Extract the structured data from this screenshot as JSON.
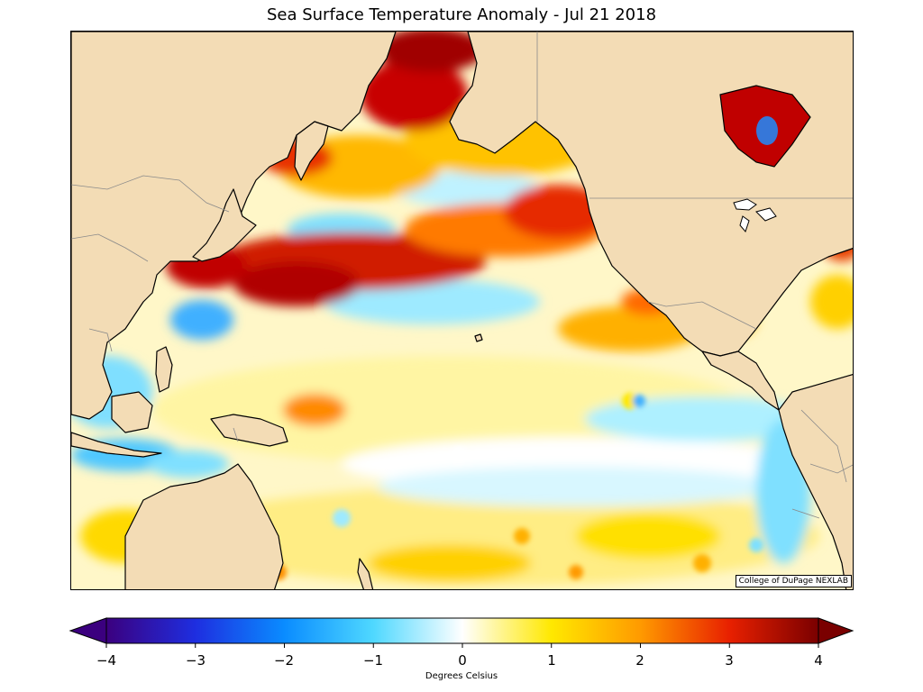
{
  "title": "Sea Surface Temperature Anomaly - Jul 21 2018",
  "credit": "College of DuPage NEXLAB",
  "colorbar": {
    "label": "Degrees Celsius",
    "ticks": [
      "−4",
      "−3",
      "−2",
      "−1",
      "0",
      "1",
      "2",
      "3",
      "4"
    ],
    "stops": [
      "#3b007f",
      "#1e2ee0",
      "#0a8cff",
      "#4fd8ff",
      "#ffffff",
      "#ffe800",
      "#ff9a00",
      "#e82000",
      "#7a0000"
    ]
  },
  "colors": {
    "land": "#f3dcb5",
    "coast": "#000000",
    "border": "#8a8a8a",
    "warm_strong": "#b00000",
    "warm": "#ff6a00",
    "warm_light": "#ffe14d",
    "cool": "#4fd8ff",
    "cool_strong": "#1d8cff"
  }
}
